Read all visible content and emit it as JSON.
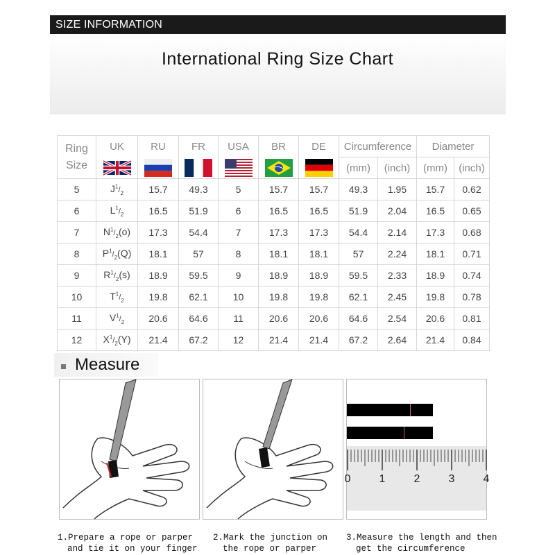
{
  "header": {
    "label": "SIZE INFORMATION",
    "title": "International Ring Size Chart"
  },
  "table": {
    "headers": {
      "ring_size": [
        "Ring",
        "Size"
      ],
      "uk": "UK",
      "ru": "RU",
      "fr": "FR",
      "usa": "USA",
      "br": "BR",
      "de": "DE",
      "circumference": "Circumference",
      "diameter": "Diameter",
      "mm": "(mm)",
      "inch": "(inch)"
    },
    "flags": {
      "uk": "uk-flag",
      "ru": "russia-flag",
      "fr": "france-flag",
      "usa": "usa-flag",
      "br": "brazil-flag",
      "de": "germany-flag"
    },
    "rows": [
      {
        "size": "5",
        "uk": "J",
        "uk_suffix": "",
        "ru": "15.7",
        "fr": "49.3",
        "usa": "5",
        "br": "15.7",
        "de": "15.7",
        "circ_mm": "49.3",
        "circ_in": "1.95",
        "dia_mm": "15.7",
        "dia_in": "0.62"
      },
      {
        "size": "6",
        "uk": "L",
        "uk_suffix": "",
        "ru": "16.5",
        "fr": "51.9",
        "usa": "6",
        "br": "16.5",
        "de": "16.5",
        "circ_mm": "51.9",
        "circ_in": "2.04",
        "dia_mm": "16.5",
        "dia_in": "0.65"
      },
      {
        "size": "7",
        "uk": "N",
        "uk_suffix": "(o)",
        "ru": "17.3",
        "fr": "54.4",
        "usa": "7",
        "br": "17.3",
        "de": "17.3",
        "circ_mm": "54.4",
        "circ_in": "2.14",
        "dia_mm": "17.3",
        "dia_in": "0.68"
      },
      {
        "size": "8",
        "uk": "P",
        "uk_suffix": "(Q)",
        "ru": "18.1",
        "fr": "57",
        "usa": "8",
        "br": "18.1",
        "de": "18.1",
        "circ_mm": "57",
        "circ_in": "2.24",
        "dia_mm": "18.1",
        "dia_in": "0.71"
      },
      {
        "size": "9",
        "uk": "R",
        "uk_suffix": "(s)",
        "ru": "18.9",
        "fr": "59.5",
        "usa": "9",
        "br": "18.9",
        "de": "18.9",
        "circ_mm": "59.5",
        "circ_in": "2.33",
        "dia_mm": "18.9",
        "dia_in": "0.74"
      },
      {
        "size": "10",
        "uk": "T",
        "uk_suffix": "",
        "ru": "19.8",
        "fr": "62.1",
        "usa": "10",
        "br": "19.8",
        "de": "19.8",
        "circ_mm": "62.1",
        "circ_in": "2.45",
        "dia_mm": "19.8",
        "dia_in": "0.78"
      },
      {
        "size": "11",
        "uk": "V",
        "uk_suffix": "",
        "ru": "20.6",
        "fr": "64.6",
        "usa": "11",
        "br": "20.6",
        "de": "20.6",
        "circ_mm": "64.6",
        "circ_in": "2.54",
        "dia_mm": "20.6",
        "dia_in": "0.81"
      },
      {
        "size": "12",
        "uk": "X",
        "uk_suffix": "(Y)",
        "ru": "21.4",
        "fr": "67.2",
        "usa": "12",
        "br": "21.4",
        "de": "21.4",
        "circ_mm": "67.2",
        "circ_in": "2.64",
        "dia_mm": "21.4",
        "dia_in": "0.84"
      }
    ],
    "half": {
      "num": "1",
      "den": "2"
    }
  },
  "measure": {
    "label": "Measure",
    "ruler_ticks": [
      "0",
      "1",
      "2",
      "3",
      "4"
    ],
    "steps": [
      {
        "line1": "1.Prepare a rope or parper",
        "line2": "and tie it on your finger"
      },
      {
        "line1": "2.Mark the junction on",
        "line2": "the rope or parper"
      },
      {
        "line1": "3.Measure the length and then",
        "line2": "get the circumference"
      }
    ]
  }
}
